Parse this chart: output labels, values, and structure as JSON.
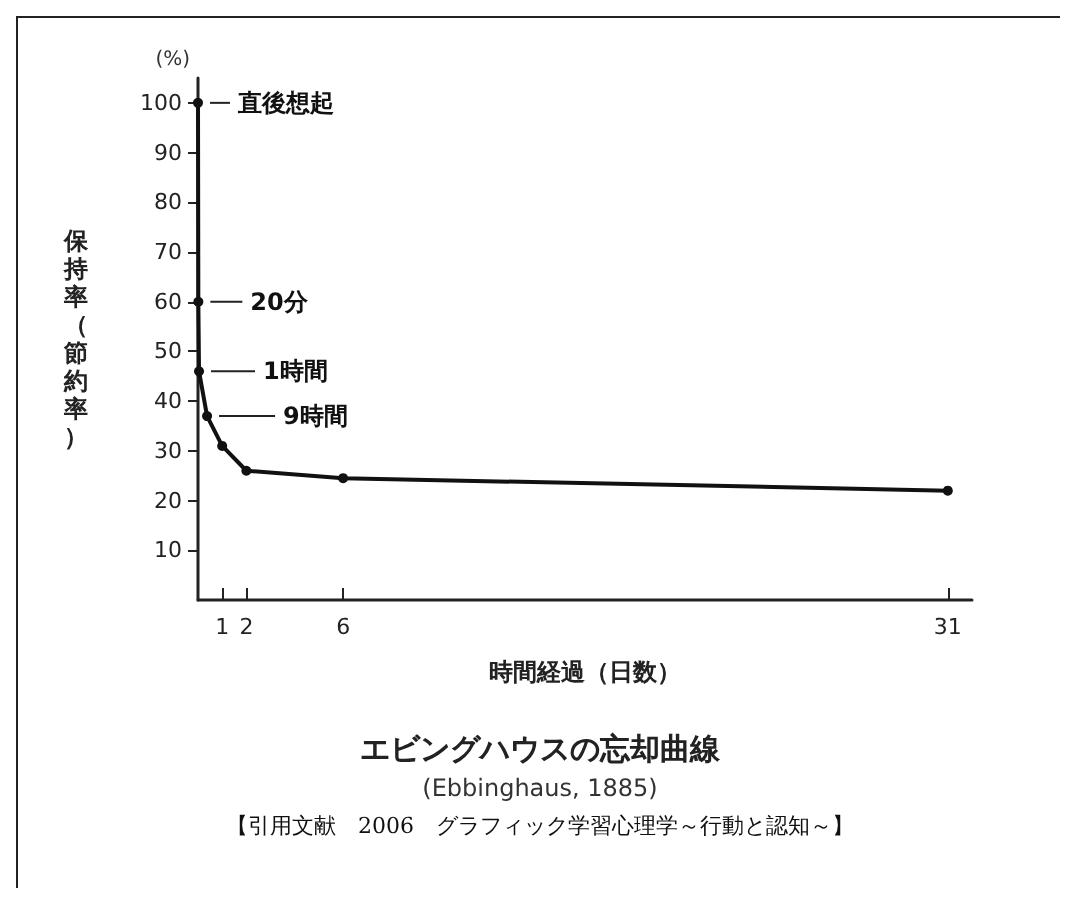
{
  "chart_data": {
    "type": "line",
    "title": "エビングハウスの忘却曲線",
    "subtitle": "(Ebbinghaus, 1885)",
    "xlabel": "時間経過（日数）",
    "ylabel": "保持率（節約率）",
    "x": [
      0,
      0.014,
      0.042,
      0.375,
      1,
      2,
      6,
      31
    ],
    "values": [
      100,
      60,
      46,
      37,
      31,
      26,
      24.5,
      22
    ],
    "color": "#111111",
    "marker": "circle",
    "line_style": "solid",
    "grid": false,
    "xlim": [
      0,
      32
    ],
    "xticks": [
      1,
      2,
      6,
      31
    ],
    "ylim": [
      0,
      105
    ],
    "yticks": [
      10,
      20,
      30,
      40,
      50,
      60,
      70,
      80,
      90,
      100
    ],
    "annotations": [
      "(%)",
      {
        "text": "直後想起",
        "x": 0,
        "y": 100
      },
      {
        "text": "20分",
        "x": 0.014,
        "y": 60
      },
      {
        "text": "1時間",
        "x": 0.042,
        "y": 46
      },
      {
        "text": "9時間",
        "x": 0.375,
        "y": 37
      },
      "【引用文献　2006　グラフィック学習心理学～行動と認知～】"
    ]
  }
}
